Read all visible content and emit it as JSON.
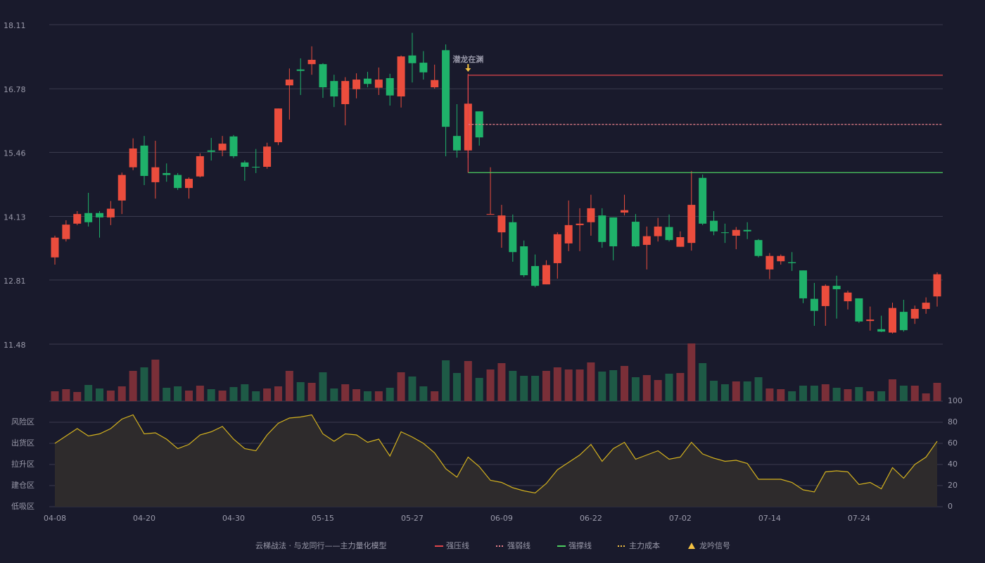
{
  "chart_data": {
    "type": "candlestick",
    "categories": [
      "04-08",
      null,
      null,
      null,
      null,
      null,
      null,
      null,
      "04-20",
      null,
      null,
      null,
      null,
      null,
      null,
      null,
      "04-30",
      null,
      null,
      null,
      null,
      null,
      null,
      null,
      "05-15",
      null,
      null,
      null,
      null,
      null,
      null,
      null,
      "05-27",
      null,
      null,
      null,
      null,
      null,
      null,
      null,
      "06-09",
      null,
      null,
      null,
      null,
      null,
      null,
      null,
      "06-22",
      null,
      null,
      null,
      null,
      null,
      null,
      null,
      "07-02",
      null,
      null,
      null,
      null,
      null,
      null,
      null,
      "07-14",
      null,
      null,
      null,
      null,
      null,
      null,
      null,
      "07-24",
      null,
      null,
      null,
      null,
      null,
      null,
      null
    ],
    "open": [
      13.28,
      13.66,
      13.98,
      14.2,
      14.2,
      14.11,
      14.46,
      15.15,
      15.6,
      14.84,
      15.03,
      14.99,
      14.72,
      14.96,
      15.5,
      15.5,
      15.79,
      15.25,
      15.16,
      15.16,
      15.67,
      16.85,
      17.18,
      17.29,
      17.29,
      16.94,
      16.46,
      16.77,
      16.99,
      16.8,
      17.0,
      16.62,
      17.47,
      17.32,
      16.81,
      17.58,
      15.8,
      15.5,
      16.31,
      14.17,
      13.8,
      14.01,
      13.51,
      13.1,
      12.72,
      13.16,
      13.57,
      13.95,
      14.01,
      14.15,
      14.11,
      14.21,
      14.02,
      13.54,
      13.72,
      13.91,
      13.5,
      13.58,
      14.93,
      14.04,
      13.8,
      13.73,
      13.85,
      13.64,
      13.03,
      13.2,
      13.18,
      13.01,
      12.42,
      12.27,
      12.69,
      12.37,
      12.43,
      11.96,
      11.79,
      11.72,
      12.15,
      12.01,
      12.21,
      12.47
    ],
    "high": [
      13.73,
      14.05,
      14.24,
      14.62,
      14.24,
      14.45,
      15.04,
      15.75,
      15.8,
      15.7,
      15.23,
      15.03,
      14.94,
      15.44,
      15.76,
      15.8,
      15.82,
      15.29,
      15.53,
      15.66,
      16.37,
      17.2,
      17.41,
      17.66,
      17.31,
      17.07,
      17.02,
      17.1,
      17.13,
      17.22,
      17.09,
      17.47,
      17.94,
      17.56,
      17.28,
      17.7,
      16.46,
      17.09,
      16.31,
      15.15,
      14.37,
      14.17,
      13.63,
      13.34,
      13.22,
      13.8,
      14.46,
      14.3,
      14.58,
      14.3,
      14.11,
      14.58,
      14.18,
      13.92,
      14.1,
      14.17,
      13.82,
      15.07,
      15.0,
      14.24,
      13.98,
      13.91,
      14.01,
      13.66,
      13.37,
      13.34,
      13.39,
      13.01,
      12.75,
      12.72,
      12.9,
      12.59,
      12.43,
      12.26,
      12.07,
      12.34,
      12.4,
      12.28,
      12.45,
      12.97
    ],
    "low": [
      13.13,
      13.61,
      13.95,
      13.92,
      13.69,
      13.95,
      14.18,
      15.09,
      14.78,
      14.5,
      14.85,
      14.68,
      14.5,
      14.94,
      15.29,
      15.38,
      15.34,
      14.87,
      15.03,
      15.12,
      15.61,
      16.14,
      16.65,
      17.07,
      16.59,
      16.4,
      16.02,
      16.58,
      16.81,
      16.65,
      16.43,
      16.39,
      16.91,
      16.97,
      16.78,
      15.38,
      15.35,
      15.34,
      15.6,
      14.17,
      13.48,
      13.19,
      12.87,
      12.66,
      12.72,
      12.84,
      13.41,
      13.41,
      13.73,
      13.48,
      13.22,
      14.15,
      13.5,
      13.03,
      13.61,
      13.61,
      13.5,
      13.42,
      13.95,
      13.74,
      13.58,
      13.45,
      13.66,
      13.28,
      12.83,
      13.13,
      13.0,
      12.33,
      11.86,
      11.86,
      12.01,
      12.2,
      11.92,
      11.76,
      11.73,
      11.7,
      11.74,
      11.9,
      12.11,
      12.26
    ],
    "close": [
      13.69,
      13.96,
      14.18,
      14.01,
      14.11,
      14.29,
      14.99,
      15.54,
      14.97,
      15.15,
      14.99,
      14.72,
      14.91,
      15.38,
      15.47,
      15.64,
      15.38,
      15.16,
      15.15,
      15.58,
      16.37,
      16.97,
      17.15,
      17.38,
      16.81,
      16.62,
      16.94,
      16.97,
      16.88,
      16.97,
      16.64,
      17.45,
      17.31,
      17.12,
      16.96,
      15.99,
      15.5,
      16.47,
      15.77,
      14.18,
      14.15,
      13.39,
      12.91,
      12.69,
      13.12,
      13.76,
      13.95,
      13.98,
      14.3,
      13.6,
      13.51,
      14.26,
      13.51,
      13.72,
      13.92,
      13.64,
      13.7,
      14.37,
      13.98,
      13.82,
      13.79,
      13.85,
      13.82,
      13.31,
      13.31,
      13.31,
      13.16,
      12.43,
      12.17,
      12.69,
      12.62,
      12.55,
      11.95,
      11.99,
      11.74,
      12.23,
      11.77,
      12.21,
      12.34,
      12.93
    ],
    "up_color": "#eb4d3d",
    "down_color": "#1fb26a",
    "volume_up_color": "#7a2f38",
    "volume_down_color": "#1e5a46",
    "ylim": [
      11.48,
      18.11
    ],
    "yticks": [
      11.48,
      12.81,
      14.13,
      15.46,
      16.78,
      18.11
    ],
    "grid": true,
    "volume": {
      "values": [
        14,
        17,
        13,
        23,
        18,
        15,
        21,
        43,
        48,
        59,
        19,
        21,
        15,
        22,
        17,
        15,
        20,
        24,
        14,
        18,
        21,
        43,
        27,
        26,
        41,
        18,
        24,
        17,
        14,
        14,
        19,
        41,
        35,
        21,
        14,
        58,
        40,
        57,
        33,
        45,
        54,
        43,
        36,
        36,
        43,
        48,
        45,
        45,
        55,
        42,
        44,
        50,
        34,
        37,
        30,
        39,
        40,
        82,
        54,
        29,
        24,
        28,
        28,
        34,
        18,
        17,
        14,
        22,
        22,
        24,
        19,
        17,
        20,
        14,
        14,
        31,
        22,
        22,
        11,
        26
      ],
      "ylim": [
        0,
        82
      ]
    },
    "oscillator": {
      "color": "#d4b21e",
      "values": [
        60,
        67,
        74,
        67,
        69,
        74,
        83,
        87,
        69,
        70,
        64,
        55,
        59,
        68,
        71,
        76,
        64,
        55,
        53,
        68,
        79,
        84,
        85,
        87,
        69,
        62,
        69,
        68,
        61,
        64,
        48,
        71,
        66,
        60,
        51,
        36,
        28,
        47,
        38,
        25,
        23,
        18,
        15,
        13,
        22,
        35,
        42,
        49,
        59,
        43,
        55,
        61,
        45,
        49,
        53,
        45,
        47,
        61,
        50,
        46,
        43,
        44,
        41,
        26,
        26,
        26,
        23,
        16,
        14,
        33,
        34,
        33,
        21,
        23,
        17,
        37,
        27,
        40,
        47,
        62
      ],
      "ylim": [
        0,
        100
      ],
      "yticks": [
        0,
        20,
        40,
        60,
        80,
        100
      ],
      "ytick_colors": [
        "#e8404a",
        "#e8404a",
        "#4a90e2",
        "#e040e0",
        "#f0a030",
        "#40e040"
      ],
      "zones": [
        {
          "label": "风险区",
          "value": 80,
          "color": "#f0a030"
        },
        {
          "label": "出货区",
          "value": 60,
          "color": "#e040e0"
        },
        {
          "label": "拉升区",
          "value": 40,
          "color": "#4a90e2"
        },
        {
          "label": "建仓区",
          "value": 20,
          "color": "#e8404a"
        },
        {
          "label": "低吸区",
          "value": 0,
          "color": "#e8405a"
        }
      ]
    },
    "annotation": {
      "text": "潜龙在渊",
      "index": 37,
      "color": "#f5c242"
    },
    "levels": [
      {
        "name": "强压线",
        "value": 17.06,
        "color": "#e0454a",
        "dashed": false
      },
      {
        "name": "强弱线",
        "value": 16.04,
        "color": "#e8808a",
        "dashed": true
      },
      {
        "name": "强撑线",
        "value": 15.04,
        "color": "#4ccf60",
        "dashed": false
      }
    ],
    "legend_title": "云梯战法 · 与龙同行——主力量化模型",
    "legend_extra": [
      {
        "name": "主力成本",
        "color": "#f5c242",
        "marker": "dash"
      },
      {
        "name": "龙吟信号",
        "color": "#f5c242",
        "marker": "triangle"
      }
    ]
  }
}
